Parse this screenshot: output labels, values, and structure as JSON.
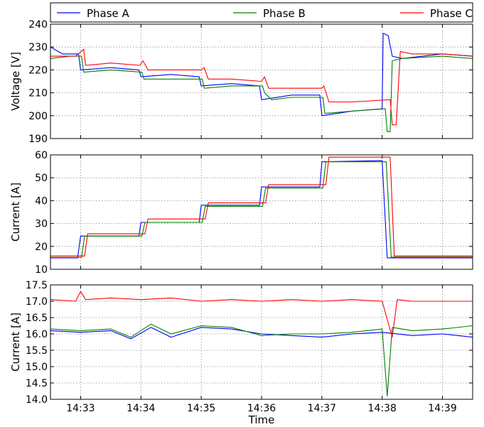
{
  "chart_data": {
    "type": "line",
    "legend": {
      "placement": "top",
      "entries": [
        {
          "name": "Phase A",
          "color": "#0000ff"
        },
        {
          "name": "Phase B",
          "color": "#008000"
        },
        {
          "name": "Phase C",
          "color": "#ff0000"
        }
      ]
    },
    "x": {
      "label": "Time",
      "unit": "minutes",
      "range": [
        "14:32:30",
        "14:39:30"
      ],
      "ticks": [
        "14:33",
        "14:34",
        "14:35",
        "14:36",
        "14:37",
        "14:38",
        "14:39"
      ],
      "grid": true
    },
    "panels": [
      {
        "ylabel": "Voltage [V]",
        "ylim": [
          190,
          240
        ],
        "yticks": [
          "190",
          "200",
          "210",
          "220",
          "230",
          "240"
        ],
        "grid": true,
        "series": [
          {
            "name": "Phase A",
            "color": "#0000ff",
            "points": [
              [
                "14:32:30",
                230
              ],
              [
                "14:32:42",
                227
              ],
              [
                "14:32:58",
                227
              ],
              [
                "14:33:00",
                220
              ],
              [
                "14:33:30",
                221
              ],
              [
                "14:33:58",
                220
              ],
              [
                "14:34:00",
                217
              ],
              [
                "14:34:30",
                218
              ],
              [
                "14:34:58",
                217
              ],
              [
                "14:35:00",
                213
              ],
              [
                "14:35:30",
                214
              ],
              [
                "14:35:58",
                213
              ],
              [
                "14:36:00",
                207
              ],
              [
                "14:36:30",
                209
              ],
              [
                "14:36:58",
                209
              ],
              [
                "14:37:00",
                200
              ],
              [
                "14:37:30",
                202
              ],
              [
                "14:38:00",
                203
              ],
              [
                "14:38:01",
                236
              ],
              [
                "14:38:06",
                235
              ],
              [
                "14:38:10",
                226
              ],
              [
                "14:38:20",
                225
              ],
              [
                "14:39:00",
                227
              ],
              [
                "14:39:30",
                226
              ]
            ]
          },
          {
            "name": "Phase B",
            "color": "#008000",
            "points": [
              [
                "14:32:30",
                225
              ],
              [
                "14:32:50",
                226
              ],
              [
                "14:33:01",
                226
              ],
              [
                "14:33:03",
                219
              ],
              [
                "14:33:30",
                220
              ],
              [
                "14:34:01",
                219
              ],
              [
                "14:34:03",
                216
              ],
              [
                "14:34:30",
                216
              ],
              [
                "14:35:01",
                216
              ],
              [
                "14:35:03",
                212
              ],
              [
                "14:35:30",
                213
              ],
              [
                "14:36:01",
                213
              ],
              [
                "14:36:03",
                210
              ],
              [
                "14:36:10",
                207
              ],
              [
                "14:36:30",
                208
              ],
              [
                "14:37:01",
                208
              ],
              [
                "14:37:03",
                201
              ],
              [
                "14:37:30",
                202
              ],
              [
                "14:38:03",
                203
              ],
              [
                "14:38:05",
                193
              ],
              [
                "14:38:08",
                193
              ],
              [
                "14:38:10",
                224
              ],
              [
                "14:38:20",
                225
              ],
              [
                "14:39:00",
                226
              ],
              [
                "14:39:30",
                225
              ]
            ]
          },
          {
            "name": "Phase C",
            "color": "#ff0000",
            "points": [
              [
                "14:32:30",
                226
              ],
              [
                "14:32:55",
                226
              ],
              [
                "14:33:03",
                229
              ],
              [
                "14:33:05",
                222
              ],
              [
                "14:33:30",
                223
              ],
              [
                "14:33:59",
                222
              ],
              [
                "14:34:02",
                224
              ],
              [
                "14:34:07",
                220
              ],
              [
                "14:34:30",
                220
              ],
              [
                "14:35:00",
                220
              ],
              [
                "14:35:03",
                221
              ],
              [
                "14:35:07",
                216
              ],
              [
                "14:35:30",
                216
              ],
              [
                "14:36:00",
                215
              ],
              [
                "14:36:03",
                217
              ],
              [
                "14:36:07",
                212
              ],
              [
                "14:36:30",
                212
              ],
              [
                "14:37:00",
                212
              ],
              [
                "14:37:02",
                213
              ],
              [
                "14:37:07",
                206
              ],
              [
                "14:37:30",
                206
              ],
              [
                "14:38:08",
                207
              ],
              [
                "14:38:10",
                196
              ],
              [
                "14:38:14",
                196
              ],
              [
                "14:38:18",
                228
              ],
              [
                "14:38:30",
                227
              ],
              [
                "14:39:00",
                227
              ],
              [
                "14:39:30",
                226
              ]
            ]
          }
        ]
      },
      {
        "ylabel": "Current [A]",
        "ylim": [
          10,
          60
        ],
        "yticks": [
          "10",
          "20",
          "30",
          "40",
          "50",
          "60"
        ],
        "grid": true,
        "series": [
          {
            "name": "Phase A",
            "color": "#0000ff",
            "points": [
              [
                "14:32:30",
                15
              ],
              [
                "14:32:57",
                15
              ],
              [
                "14:33:00",
                24.5
              ],
              [
                "14:33:58",
                24.5
              ],
              [
                "14:34:00",
                30.5
              ],
              [
                "14:34:58",
                30.5
              ],
              [
                "14:35:00",
                38
              ],
              [
                "14:35:58",
                38
              ],
              [
                "14:36:00",
                46
              ],
              [
                "14:36:58",
                46
              ],
              [
                "14:37:00",
                57
              ],
              [
                "14:38:00",
                57.5
              ],
              [
                "14:38:05",
                15
              ],
              [
                "14:39:30",
                15
              ]
            ]
          },
          {
            "name": "Phase B",
            "color": "#008000",
            "points": [
              [
                "14:32:30",
                15.2
              ],
              [
                "14:33:01",
                15.2
              ],
              [
                "14:33:04",
                24.5
              ],
              [
                "14:34:01",
                24.5
              ],
              [
                "14:34:04",
                30.5
              ],
              [
                "14:35:01",
                30.5
              ],
              [
                "14:35:04",
                37.5
              ],
              [
                "14:36:01",
                37.5
              ],
              [
                "14:36:04",
                45.5
              ],
              [
                "14:37:01",
                45.5
              ],
              [
                "14:37:04",
                57
              ],
              [
                "14:38:04",
                57
              ],
              [
                "14:38:09",
                15.3
              ],
              [
                "14:39:30",
                15.3
              ]
            ]
          },
          {
            "name": "Phase C",
            "color": "#ff0000",
            "points": [
              [
                "14:32:30",
                15.8
              ],
              [
                "14:33:04",
                15.8
              ],
              [
                "14:33:07",
                25.5
              ],
              [
                "14:34:04",
                25.5
              ],
              [
                "14:34:07",
                32
              ],
              [
                "14:35:04",
                32
              ],
              [
                "14:35:07",
                39
              ],
              [
                "14:36:04",
                39
              ],
              [
                "14:36:07",
                47
              ],
              [
                "14:37:04",
                47
              ],
              [
                "14:37:07",
                59
              ],
              [
                "14:38:08",
                59
              ],
              [
                "14:38:12",
                15.8
              ],
              [
                "14:39:30",
                15.8
              ]
            ]
          }
        ]
      },
      {
        "ylabel": "Current [A]",
        "ylim": [
          14.0,
          17.5
        ],
        "yticks": [
          "14.0",
          "14.5",
          "15.0",
          "15.5",
          "16.0",
          "16.5",
          "17.0",
          "17.5"
        ],
        "grid": true,
        "series": [
          {
            "name": "Phase A",
            "color": "#0000ff",
            "points": [
              [
                "14:32:30",
                16.1
              ],
              [
                "14:33:00",
                16.05
              ],
              [
                "14:33:30",
                16.1
              ],
              [
                "14:33:50",
                15.85
              ],
              [
                "14:34:10",
                16.2
              ],
              [
                "14:34:30",
                15.9
              ],
              [
                "14:35:00",
                16.2
              ],
              [
                "14:35:30",
                16.15
              ],
              [
                "14:36:00",
                16.0
              ],
              [
                "14:36:30",
                15.95
              ],
              [
                "14:37:00",
                15.9
              ],
              [
                "14:37:30",
                16.0
              ],
              [
                "14:38:00",
                16.05
              ],
              [
                "14:38:30",
                15.95
              ],
              [
                "14:39:00",
                16.0
              ],
              [
                "14:39:30",
                15.9
              ]
            ]
          },
          {
            "name": "Phase B",
            "color": "#008000",
            "points": [
              [
                "14:32:30",
                16.15
              ],
              [
                "14:33:00",
                16.1
              ],
              [
                "14:33:30",
                16.15
              ],
              [
                "14:33:50",
                15.9
              ],
              [
                "14:34:10",
                16.3
              ],
              [
                "14:34:30",
                16.0
              ],
              [
                "14:35:00",
                16.25
              ],
              [
                "14:35:30",
                16.2
              ],
              [
                "14:36:00",
                15.95
              ],
              [
                "14:36:30",
                16.0
              ],
              [
                "14:37:00",
                16.0
              ],
              [
                "14:37:30",
                16.05
              ],
              [
                "14:38:00",
                16.15
              ],
              [
                "14:38:05",
                14.1
              ],
              [
                "14:38:10",
                16.2
              ],
              [
                "14:38:30",
                16.1
              ],
              [
                "14:39:00",
                16.15
              ],
              [
                "14:39:30",
                16.25
              ]
            ]
          },
          {
            "name": "Phase C",
            "color": "#ff0000",
            "points": [
              [
                "14:32:30",
                17.05
              ],
              [
                "14:32:55",
                17.0
              ],
              [
                "14:33:00",
                17.3
              ],
              [
                "14:33:05",
                17.05
              ],
              [
                "14:33:30",
                17.1
              ],
              [
                "14:34:00",
                17.05
              ],
              [
                "14:34:30",
                17.1
              ],
              [
                "14:35:00",
                17.0
              ],
              [
                "14:35:30",
                17.05
              ],
              [
                "14:36:00",
                17.0
              ],
              [
                "14:36:30",
                17.05
              ],
              [
                "14:37:00",
                17.0
              ],
              [
                "14:37:30",
                17.05
              ],
              [
                "14:38:00",
                17.0
              ],
              [
                "14:38:10",
                15.9
              ],
              [
                "14:38:15",
                17.05
              ],
              [
                "14:38:30",
                17.0
              ],
              [
                "14:39:00",
                17.0
              ],
              [
                "14:39:30",
                17.0
              ]
            ]
          }
        ]
      }
    ]
  }
}
